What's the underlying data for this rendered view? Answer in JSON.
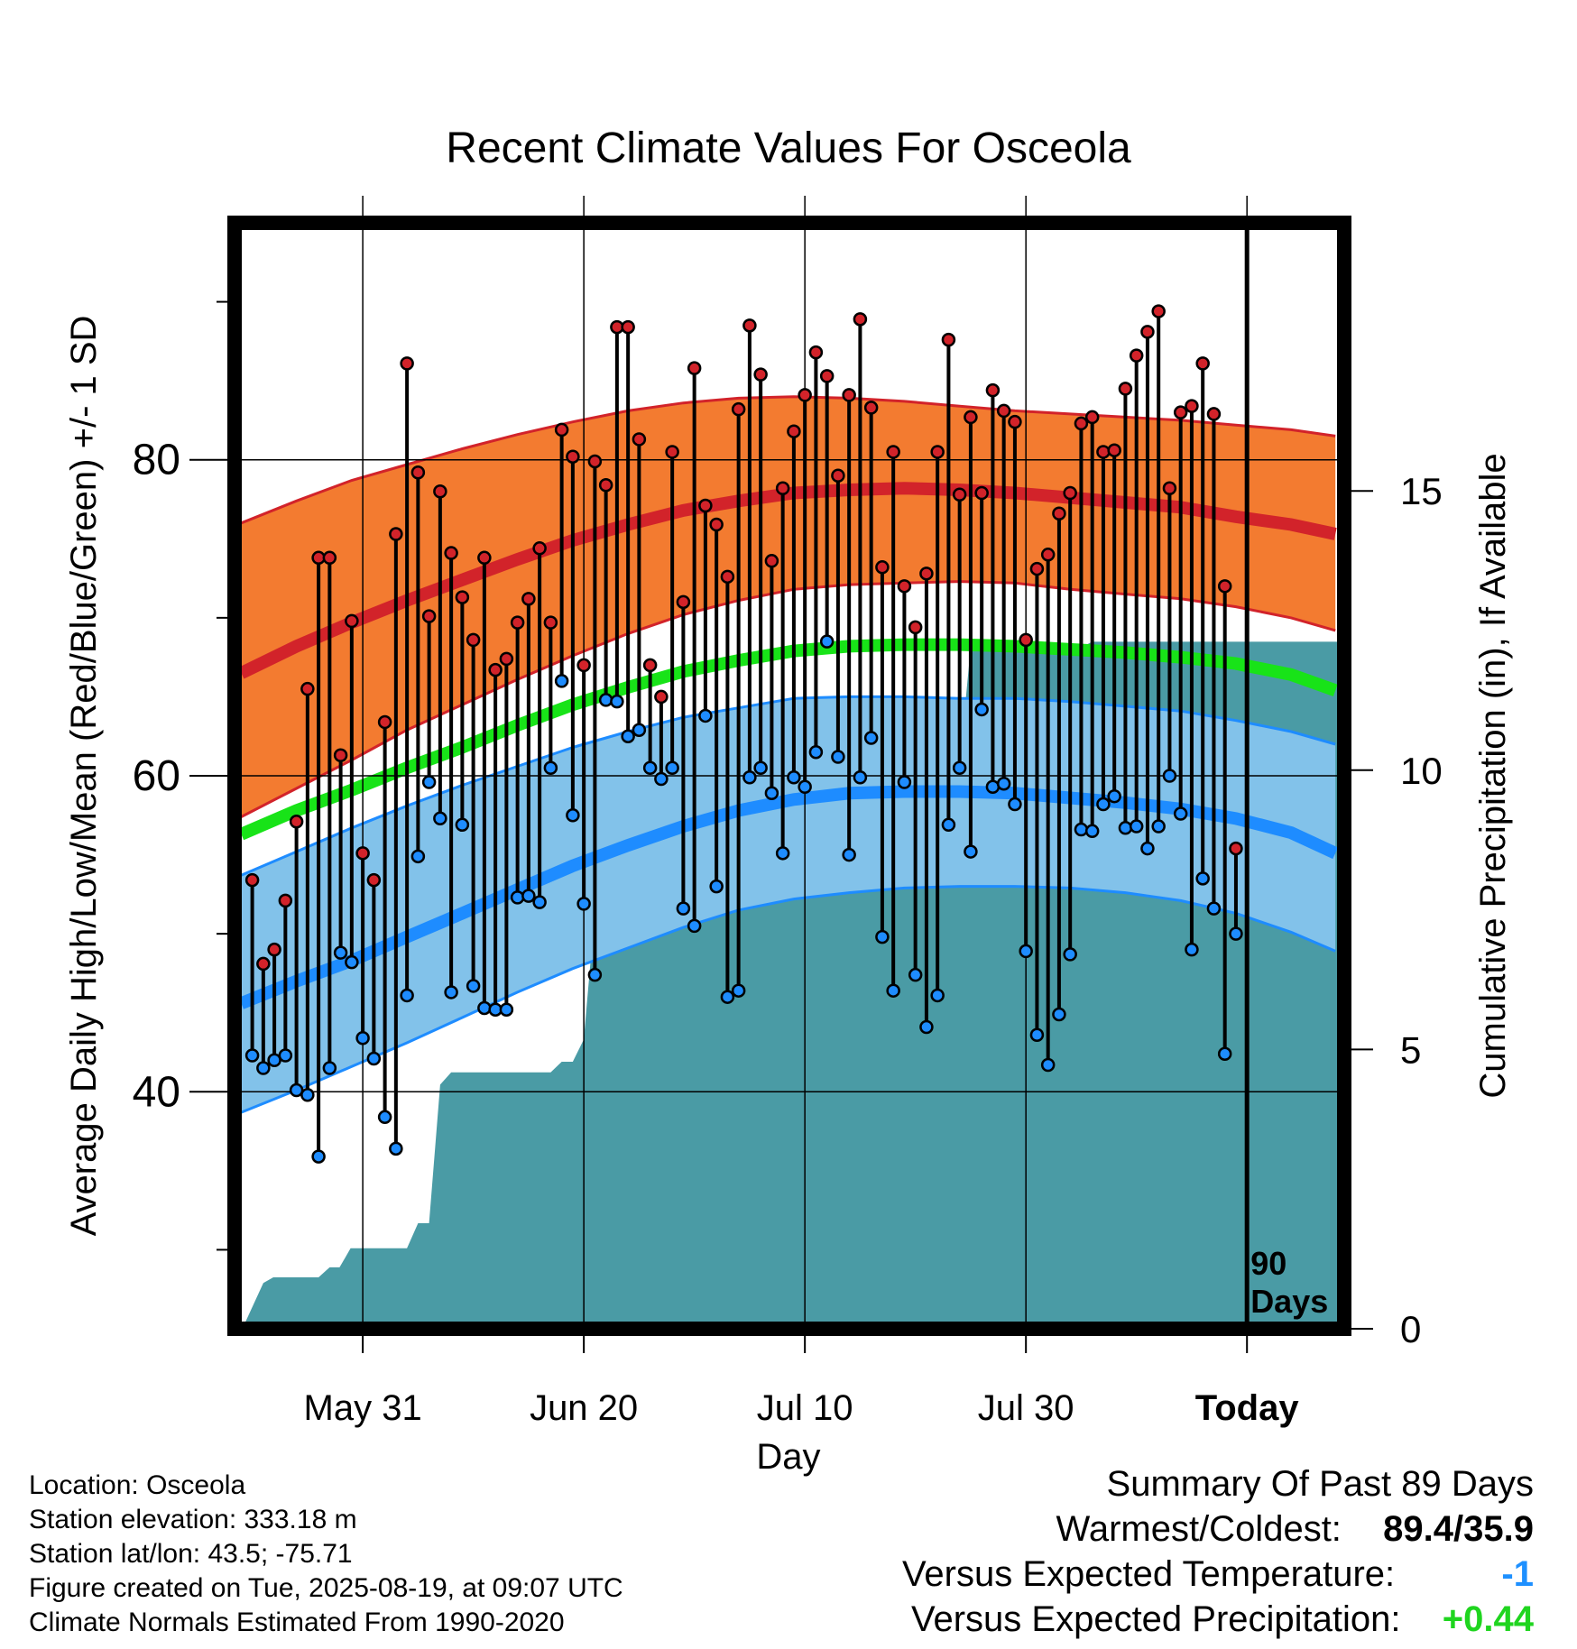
{
  "chart_data": {
    "type": "line",
    "title": "Recent Climate Values For Osceola",
    "xlabel": "Day",
    "ylabel": "Average Daily High/Low/Mean (Red/Blue/Green) +/- 1 SD",
    "y2label": "Cumulative Precipitation (in), If Available",
    "x_ticks": [
      {
        "day": 0,
        "label": "May 31"
      },
      {
        "day": 20,
        "label": "Jun 20"
      },
      {
        "day": 40,
        "label": "Jul 10"
      },
      {
        "day": 60,
        "label": "Jul 30"
      },
      {
        "day": 80,
        "label": "Today"
      }
    ],
    "xlim": [
      -11.6,
      88.8
    ],
    "ylim": [
      25,
      95
    ],
    "y_ticks": [
      40,
      60,
      80
    ],
    "y2lim": [
      0,
      19.8
    ],
    "y2_ticks": [
      0,
      5,
      10,
      15
    ],
    "today_marker": {
      "day": 80,
      "label_line1": "90",
      "label_line2": "Days"
    },
    "normals_days": [
      -11,
      -6,
      -1,
      4,
      9,
      14,
      19,
      24,
      29,
      34,
      39,
      44,
      49,
      54,
      59,
      64,
      69,
      74,
      79,
      84,
      88
    ],
    "normal_high": [
      66.5,
      68.2,
      69.7,
      71.1,
      72.4,
      73.7,
      74.9,
      75.9,
      76.8,
      77.4,
      77.9,
      78.1,
      78.2,
      78.1,
      77.9,
      77.6,
      77.3,
      77.0,
      76.4,
      75.9,
      75.3
    ],
    "normal_high_upper": [
      76.0,
      77.4,
      78.7,
      79.7,
      80.7,
      81.6,
      82.4,
      83.1,
      83.6,
      83.9,
      84.0,
      83.9,
      83.7,
      83.4,
      83.1,
      82.9,
      82.7,
      82.5,
      82.2,
      81.9,
      81.5
    ],
    "normal_high_lower": [
      57.4,
      59.2,
      61.0,
      62.9,
      64.5,
      66.1,
      67.6,
      69.0,
      70.2,
      71.1,
      71.8,
      72.1,
      72.2,
      72.3,
      72.2,
      71.8,
      71.5,
      71.2,
      70.7,
      70.0,
      69.2
    ],
    "normal_mean": [
      56.3,
      57.8,
      59.1,
      60.5,
      61.8,
      63.2,
      64.5,
      65.6,
      66.6,
      67.3,
      67.9,
      68.2,
      68.3,
      68.3,
      68.2,
      68.0,
      67.8,
      67.5,
      67.1,
      66.4,
      65.4
    ],
    "normal_low": [
      45.6,
      47.0,
      48.3,
      49.8,
      51.3,
      52.8,
      54.3,
      55.6,
      56.8,
      57.8,
      58.5,
      58.9,
      59.0,
      59.0,
      58.9,
      58.6,
      58.3,
      57.9,
      57.3,
      56.4,
      55.1
    ],
    "normal_low_upper": [
      53.7,
      55.2,
      56.7,
      58.1,
      59.4,
      60.6,
      61.8,
      62.8,
      63.7,
      64.3,
      64.9,
      65.0,
      65.0,
      64.9,
      64.9,
      64.7,
      64.4,
      64.1,
      63.5,
      62.8,
      62.0
    ],
    "normal_low_lower": [
      38.7,
      40.1,
      41.6,
      43.1,
      44.7,
      46.3,
      47.8,
      49.1,
      50.4,
      51.5,
      52.2,
      52.6,
      52.9,
      53.0,
      53.0,
      52.9,
      52.6,
      52.1,
      51.3,
      50.1,
      48.9
    ],
    "daily": {
      "days": [
        -10.0,
        -9.0,
        -8.0,
        -7.0,
        -6.0,
        -5.0,
        -4.0,
        -3.0,
        -2.0,
        -1.0,
        0.0,
        1.0,
        2.0,
        3.0,
        4.0,
        5.0,
        6.0,
        7.0,
        8.0,
        9.0,
        10.0,
        11.0,
        12.0,
        13.0,
        14.0,
        15.0,
        16.0,
        17.0,
        18.0,
        19.0,
        20.0,
        21.0,
        22.0,
        23.0,
        24.0,
        25.0,
        26.0,
        27.0,
        28.0,
        29.0,
        30.0,
        31.0,
        32.0,
        33.0,
        34.0,
        35.0,
        36.0,
        37.0,
        38.0,
        39.0,
        40.0,
        41.0,
        42.0,
        43.0,
        44.0,
        45.0,
        46.0,
        47.0,
        48.0,
        49.0,
        50.0,
        51.0,
        52.0,
        53.0,
        54.0,
        55.0,
        56.0,
        57.0,
        58.0,
        59.0,
        60.0,
        61.0,
        62.0,
        63.0,
        64.0,
        65.0,
        66.0,
        67.0,
        68.0,
        69.0,
        70.0,
        71.0,
        72.0,
        73.0,
        74.0,
        75.0,
        76.0,
        77.0,
        78.0,
        79.0
      ],
      "high": [
        53.4,
        48.1,
        49.0,
        52.1,
        57.1,
        65.5,
        73.8,
        73.8,
        61.3,
        69.8,
        55.1,
        53.4,
        63.4,
        75.3,
        86.1,
        79.2,
        70.1,
        78.0,
        74.1,
        71.3,
        68.6,
        73.8,
        66.7,
        67.4,
        69.7,
        71.2,
        74.4,
        69.7,
        81.9,
        80.2,
        67.0,
        79.9,
        78.4,
        88.4,
        88.4,
        81.3,
        67.0,
        65.0,
        80.5,
        71.0,
        85.8,
        77.1,
        75.9,
        72.6,
        83.2,
        88.5,
        85.4,
        73.6,
        78.2,
        81.8,
        84.1,
        86.8,
        85.3,
        79.0,
        84.1,
        88.9,
        83.3,
        73.2,
        80.5,
        72.0,
        69.4,
        72.8,
        80.5,
        87.6,
        77.8,
        82.7,
        77.9,
        84.4,
        83.1,
        82.4,
        68.6,
        73.1,
        74.0,
        76.6,
        77.9,
        82.3,
        82.7,
        80.5,
        80.6,
        84.5,
        86.6,
        88.1,
        89.4,
        78.2,
        83.0,
        83.4,
        86.1,
        82.9,
        72.0,
        55.4
      ],
      "low": [
        42.3,
        41.5,
        42.0,
        42.3,
        40.1,
        39.8,
        35.9,
        41.5,
        48.8,
        48.2,
        43.4,
        42.1,
        38.4,
        36.4,
        46.1,
        54.9,
        59.6,
        57.3,
        46.3,
        56.9,
        46.7,
        45.3,
        45.2,
        45.2,
        52.3,
        52.4,
        52.0,
        60.5,
        66.0,
        57.5,
        51.9,
        47.4,
        64.8,
        64.7,
        62.5,
        62.9,
        60.5,
        59.8,
        60.5,
        51.6,
        50.5,
        63.8,
        53.0,
        46.0,
        46.4,
        59.9,
        60.5,
        58.9,
        55.1,
        59.9,
        59.3,
        61.5,
        68.5,
        61.2,
        55.0,
        59.9,
        62.4,
        49.8,
        46.4,
        59.6,
        47.4,
        44.1,
        46.1,
        56.9,
        60.5,
        55.2,
        64.2,
        59.3,
        59.5,
        58.2,
        48.9,
        43.6,
        41.7,
        44.9,
        48.7,
        56.6,
        56.5,
        58.2,
        58.7,
        56.7,
        56.8,
        55.4,
        56.8,
        60.0,
        57.6,
        49.0,
        53.5,
        51.6,
        42.4,
        50.0
      ]
    },
    "precip_days": [
      -11.6,
      -10.9,
      -9.0,
      -8.1,
      -7.1,
      -6.1,
      -5.1,
      -4.0,
      -3.0,
      -2.1,
      -1.1,
      -0.1,
      1.0,
      2.0,
      3.0,
      4.0,
      5.0,
      6.0,
      7.0,
      8.0,
      9.0,
      10.0,
      11.0,
      12.0,
      13.0,
      14.0,
      15.0,
      16.0,
      17.0,
      18.0,
      19.0,
      20.0,
      21.0,
      22.0,
      23.0,
      24.0,
      25.0,
      26.0,
      27.0,
      28.0,
      29.0,
      30.0,
      31.0,
      32.0,
      33.0,
      34.0,
      35.0,
      36.0,
      37.0,
      38.0,
      39.0,
      40.0,
      41.0,
      42.0,
      43.0,
      44.0,
      45.0,
      46.0,
      47.0,
      48.0,
      49.0,
      50.0,
      51.0,
      52.0,
      53.0,
      54.0,
      55.0,
      56.0,
      57.0,
      58.0,
      59.0,
      60.0,
      61.0,
      62.0,
      63.0,
      64.0,
      65.0,
      66.0,
      67.0,
      68.0,
      69.0,
      70.0,
      71.0,
      72.0,
      73.0,
      74.0,
      75.0,
      76.0,
      77.0,
      78.0,
      79.0,
      80.0,
      81.0,
      82.0,
      83.0,
      84.0,
      85.0,
      86.0,
      87.0,
      88.8
    ],
    "precip": [
      0.0,
      0.0,
      0.82,
      0.92,
      0.92,
      0.92,
      0.92,
      0.92,
      1.1,
      1.1,
      1.44,
      1.44,
      1.44,
      1.44,
      1.44,
      1.44,
      1.89,
      1.89,
      4.37,
      4.59,
      4.59,
      4.59,
      4.59,
      4.59,
      4.59,
      4.59,
      4.59,
      4.59,
      4.59,
      4.78,
      4.78,
      5.18,
      7.48,
      7.48,
      7.48,
      7.48,
      7.65,
      7.65,
      8.76,
      8.8,
      8.8,
      8.9,
      8.9,
      8.9,
      8.9,
      8.9,
      8.9,
      8.98,
      9.0,
      9.0,
      9.0,
      9.2,
      9.2,
      9.2,
      9.6,
      9.6,
      9.6,
      9.6,
      9.8,
      9.9,
      9.9,
      10.1,
      10.1,
      10.1,
      10.1,
      10.1,
      12.2,
      12.2,
      12.2,
      12.2,
      12.2,
      12.2,
      12.2,
      12.2,
      12.2,
      12.2,
      12.2,
      12.3,
      12.3,
      12.3,
      12.3,
      12.3,
      12.3,
      12.3,
      12.3,
      12.3,
      12.3,
      12.3,
      12.3,
      12.3,
      12.3,
      12.3,
      12.3,
      12.3,
      12.3,
      12.3,
      12.3,
      12.3,
      12.3,
      12.3
    ]
  },
  "info": {
    "location": "Location: Osceola",
    "elevation": "Station elevation: 333.18 m",
    "latlon": "Station lat/lon: 43.5; -75.71",
    "created": "Figure created on Tue, 2025-08-19, at 09:07 UTC",
    "normals": "Climate Normals Estimated From 1990-2020"
  },
  "summary": {
    "title": "Summary Of Past 89 Days",
    "warmest_label": "Warmest/Coldest:",
    "warmest_value": "89.4/35.9",
    "temp_label": "Versus Expected Temperature:",
    "temp_value": "-1",
    "precip_label": "Versus Expected Precipitation:",
    "precip_value": "+0.44",
    "colors": {
      "temp_value": "#1e90ff",
      "precip_value": "#1fd51f"
    }
  },
  "colors": {
    "high_band": "#f37b30",
    "high_line": "#d2232a",
    "low_band": "#82c2ea",
    "low_line": "#1e8cff",
    "mean_line": "#18e318",
    "precip_fill": "#4a9ba5",
    "high_dot": "#d2232a",
    "low_dot": "#1e8cff"
  }
}
